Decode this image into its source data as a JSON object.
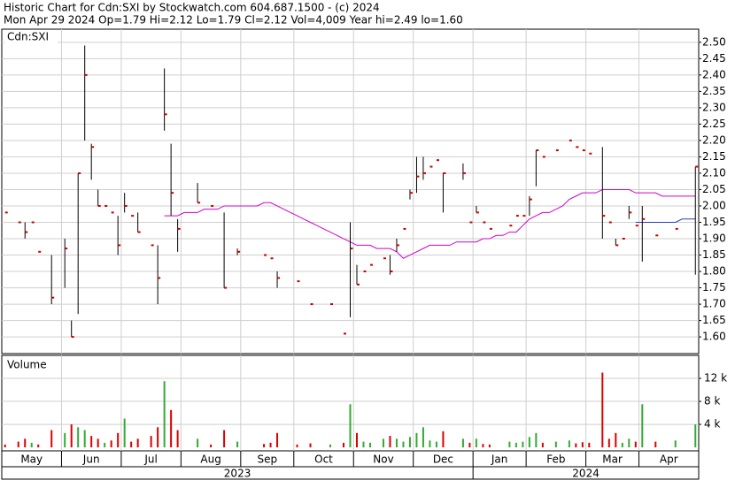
{
  "header": {
    "title": "Historic Chart for Cdn:SXI by Stockwatch.com 604.687.1500 - (c) 2024",
    "subtitle": "Mon Apr 29 2024  Op=1.79  Hi=2.12  Lo=1.79  Cl=2.12  Vol=4,009  Year hi=2.49  lo=1.60"
  },
  "chart_data": {
    "type": "ohlc",
    "categories": [
      "May",
      null,
      null,
      null,
      null,
      null,
      null,
      null,
      null,
      "Jun",
      null,
      null,
      null,
      null,
      null,
      null,
      null,
      null,
      "Jul",
      null,
      null,
      null,
      null,
      null,
      null,
      null,
      null,
      "Aug",
      null,
      null,
      null,
      null,
      null,
      null,
      null,
      null,
      "Sep",
      null,
      null,
      null,
      null,
      null,
      null,
      null,
      "Oct",
      null,
      null,
      null,
      null,
      null,
      null,
      null,
      null,
      "Nov",
      null,
      null,
      null,
      null,
      null,
      null,
      null,
      null,
      "Dec",
      null,
      null,
      null,
      null,
      null,
      null,
      null,
      null,
      "Jan",
      null,
      null,
      null,
      null,
      null,
      null,
      null,
      "Feb",
      null,
      null,
      null,
      null,
      null,
      null,
      null,
      null,
      "Mar",
      null,
      null,
      null,
      null,
      null,
      null,
      null,
      "Apr",
      null,
      null,
      null,
      null,
      null,
      null,
      null,
      null
    ],
    "year_categories": [
      "2023",
      null,
      null,
      null,
      null,
      null,
      null,
      null,
      null,
      null,
      null,
      null,
      null,
      null,
      null,
      null,
      null,
      null,
      null,
      null,
      null,
      null,
      null,
      null,
      null,
      null,
      null,
      null,
      null,
      null,
      null,
      null,
      null,
      null,
      null,
      null,
      null,
      null,
      null,
      null,
      null,
      null,
      null,
      null,
      null,
      null,
      null,
      null,
      null,
      null,
      null,
      null,
      null,
      null,
      null,
      null,
      null,
      null,
      null,
      null,
      null,
      null,
      null,
      null,
      null,
      null,
      null,
      null,
      null,
      null,
      null,
      "2024",
      null,
      null,
      null,
      null,
      null,
      null,
      null,
      null,
      null,
      null,
      null,
      null,
      null,
      null,
      null,
      null,
      null,
      null,
      null,
      null,
      null,
      null,
      null,
      null,
      null,
      null,
      null,
      null,
      null,
      null,
      null,
      null,
      null
    ],
    "ohlc": {
      "name": "Cdn:SXI",
      "color": "#000000",
      "close_color": "#cc0000",
      "high": [
        1.98,
        null,
        1.95,
        1.95,
        1.95,
        1.86,
        null,
        1.85,
        null,
        1.9,
        1.65,
        2.1,
        2.49,
        2.19,
        2.05,
        2.0,
        1.98,
        1.97,
        2.04,
        1.97,
        1.98,
        null,
        1.88,
        1.88,
        2.42,
        2.19,
        1.96,
        null,
        null,
        2.07,
        null,
        2.0,
        null,
        1.98,
        null,
        1.87,
        null,
        null,
        null,
        1.85,
        1.84,
        1.8,
        null,
        null,
        1.77,
        null,
        1.7,
        null,
        null,
        1.7,
        null,
        1.61,
        1.95,
        1.82,
        1.8,
        1.82,
        null,
        1.84,
        1.85,
        1.9,
        1.93,
        2.05,
        2.15,
        2.15,
        2.12,
        2.14,
        2.1,
        null,
        null,
        2.13,
        1.95,
        2.0,
        1.95,
        1.93,
        null,
        null,
        1.94,
        1.97,
        1.97,
        2.03,
        2.17,
        2.15,
        null,
        2.17,
        null,
        2.2,
        2.18,
        2.17,
        2.16,
        null,
        2.18,
        1.95,
        1.9,
        1.9,
        2.0,
        1.94,
        2.0,
        null,
        1.91,
        null,
        null,
        1.93,
        null,
        null,
        2.12
      ],
      "low": [
        1.98,
        null,
        1.95,
        1.9,
        1.95,
        1.86,
        null,
        1.7,
        null,
        1.75,
        1.6,
        1.67,
        2.2,
        2.08,
        2.0,
        2.0,
        1.98,
        1.85,
        1.98,
        1.97,
        1.92,
        null,
        1.88,
        1.7,
        2.23,
        1.97,
        1.86,
        null,
        null,
        2.01,
        null,
        2.0,
        null,
        1.75,
        null,
        1.85,
        null,
        null,
        null,
        1.85,
        1.84,
        1.75,
        null,
        null,
        1.77,
        null,
        1.7,
        null,
        null,
        1.7,
        null,
        1.61,
        1.66,
        1.76,
        1.8,
        1.82,
        null,
        1.84,
        1.79,
        1.86,
        1.93,
        2.02,
        2.04,
        2.08,
        2.12,
        2.14,
        1.98,
        null,
        null,
        2.08,
        1.95,
        1.98,
        1.95,
        1.93,
        null,
        null,
        1.94,
        1.97,
        1.97,
        1.97,
        2.06,
        2.15,
        null,
        2.17,
        null,
        2.2,
        2.18,
        2.17,
        2.16,
        null,
        1.9,
        1.95,
        1.88,
        1.9,
        1.96,
        1.94,
        1.83,
        null,
        1.91,
        null,
        null,
        1.93,
        null,
        null,
        1.79
      ],
      "close": [
        1.98,
        null,
        1.95,
        1.92,
        1.95,
        1.86,
        null,
        1.72,
        null,
        1.87,
        1.6,
        2.1,
        2.4,
        2.18,
        2.0,
        2.0,
        1.98,
        1.88,
        2.0,
        1.97,
        1.92,
        null,
        1.88,
        1.78,
        2.28,
        2.04,
        1.93,
        null,
        null,
        2.01,
        null,
        2.0,
        null,
        1.75,
        null,
        1.86,
        null,
        null,
        null,
        1.85,
        1.84,
        1.78,
        null,
        null,
        1.77,
        null,
        1.7,
        null,
        null,
        1.7,
        null,
        1.61,
        1.87,
        1.76,
        1.8,
        1.82,
        null,
        1.84,
        1.8,
        1.88,
        1.93,
        2.04,
        2.09,
        2.1,
        2.12,
        2.14,
        2.1,
        null,
        null,
        2.1,
        1.95,
        1.98,
        1.95,
        1.93,
        null,
        null,
        1.94,
        1.97,
        1.97,
        2.02,
        2.17,
        2.15,
        null,
        2.17,
        null,
        2.2,
        2.18,
        2.17,
        2.16,
        null,
        1.97,
        1.95,
        1.88,
        1.9,
        1.98,
        1.94,
        1.96,
        null,
        1.91,
        null,
        null,
        1.93,
        null,
        null,
        2.12
      ]
    },
    "lines": [
      {
        "color": "#d000d0",
        "values": [
          null,
          null,
          null,
          null,
          null,
          null,
          null,
          null,
          null,
          null,
          null,
          null,
          null,
          null,
          null,
          null,
          null,
          null,
          null,
          null,
          null,
          null,
          null,
          null,
          1.97,
          1.97,
          1.97,
          1.98,
          1.98,
          1.98,
          1.99,
          1.99,
          1.99,
          2.0,
          2.0,
          2.0,
          2.0,
          2.0,
          2.0,
          2.01,
          2.01,
          2.0,
          1.99,
          1.98,
          1.97,
          1.96,
          1.95,
          1.94,
          1.93,
          1.92,
          1.91,
          1.9,
          1.89,
          1.88,
          1.88,
          1.88,
          1.87,
          1.87,
          1.87,
          1.86,
          1.84,
          1.85,
          1.86,
          1.87,
          1.88,
          1.88,
          1.88,
          1.88,
          1.89,
          1.89,
          1.89,
          1.89,
          1.9,
          1.9,
          1.91,
          1.91,
          1.92,
          1.92,
          1.94,
          1.96,
          1.97,
          1.98,
          1.98,
          1.99,
          2.0,
          2.02,
          2.03,
          2.04,
          2.04,
          2.04,
          2.05,
          2.05,
          2.05,
          2.05,
          2.05,
          2.04,
          2.04,
          2.04,
          2.04,
          2.03,
          2.03,
          2.03,
          2.03,
          2.03,
          2.03
        ]
      },
      {
        "color": "#2040c0",
        "values": [
          null,
          null,
          null,
          null,
          null,
          null,
          null,
          null,
          null,
          null,
          null,
          null,
          null,
          null,
          null,
          null,
          null,
          null,
          null,
          null,
          null,
          null,
          null,
          null,
          null,
          null,
          null,
          null,
          null,
          null,
          null,
          null,
          null,
          null,
          null,
          null,
          null,
          null,
          null,
          null,
          null,
          null,
          null,
          null,
          null,
          null,
          null,
          null,
          null,
          null,
          null,
          null,
          null,
          null,
          null,
          null,
          null,
          null,
          null,
          null,
          null,
          null,
          null,
          null,
          null,
          null,
          null,
          null,
          null,
          null,
          null,
          null,
          null,
          null,
          null,
          null,
          null,
          null,
          null,
          null,
          null,
          null,
          null,
          null,
          null,
          null,
          null,
          null,
          null,
          null,
          null,
          null,
          null,
          null,
          null,
          1.95,
          1.95,
          1.95,
          1.95,
          1.95,
          1.95,
          1.95,
          1.96,
          1.96,
          1.96
        ]
      }
    ],
    "ylim": [
      1.549,
      2.54
    ],
    "yticks": [
      {
        "value": 1.6,
        "label": "1.60"
      },
      {
        "value": 1.65,
        "label": "1.65"
      },
      {
        "value": 1.7,
        "label": "1.70"
      },
      {
        "value": 1.75,
        "label": "1.75"
      },
      {
        "value": 1.8,
        "label": "1.80"
      },
      {
        "value": 1.85,
        "label": "1.85"
      },
      {
        "value": 1.9,
        "label": "1.90"
      },
      {
        "value": 1.95,
        "label": "1.95"
      },
      {
        "value": 2.0,
        "label": "2.00"
      },
      {
        "value": 2.05,
        "label": "2.05"
      },
      {
        "value": 2.1,
        "label": "2.10"
      },
      {
        "value": 2.15,
        "label": "2.15"
      },
      {
        "value": 2.2,
        "label": "2.20"
      },
      {
        "value": 2.25,
        "label": "2.25"
      },
      {
        "value": 2.3,
        "label": "2.30"
      },
      {
        "value": 2.35,
        "label": "2.35"
      },
      {
        "value": 2.4,
        "label": "2.40"
      },
      {
        "value": 2.45,
        "label": "2.45"
      },
      {
        "value": 2.5,
        "label": "2.50"
      }
    ],
    "grid": true,
    "volume": {
      "label": "Volume",
      "up_color": "#33aa33",
      "down_color": "#dd0000",
      "values": [
        500,
        null,
        1000,
        1500,
        800,
        500,
        null,
        3000,
        null,
        2500,
        4000,
        3500,
        3000,
        2000,
        1500,
        800,
        1200,
        2500,
        5000,
        1000,
        1500,
        null,
        2000,
        3500,
        11500,
        6500,
        3000,
        null,
        null,
        1500,
        null,
        500,
        null,
        3000,
        null,
        1000,
        null,
        null,
        null,
        600,
        800,
        2500,
        null,
        null,
        500,
        null,
        700,
        null,
        null,
        500,
        null,
        800,
        7500,
        2500,
        1000,
        800,
        null,
        1500,
        2000,
        1500,
        1000,
        1800,
        2500,
        3500,
        1200,
        1000,
        2800,
        null,
        null,
        1500,
        800,
        1500,
        600,
        500,
        null,
        null,
        1000,
        800,
        1000,
        1800,
        2500,
        800,
        null,
        1000,
        null,
        1200,
        700,
        900,
        800,
        null,
        13000,
        1500,
        2500,
        800,
        1500,
        1000,
        7500,
        null,
        1000,
        null,
        null,
        1200,
        null,
        null,
        4009
      ],
      "ylim": [
        -600,
        16000
      ],
      "yticks": [
        {
          "value": 4000,
          "label": "4 k"
        },
        {
          "value": 8000,
          "label": "8 k"
        },
        {
          "value": 12000,
          "label": "12 k"
        }
      ]
    }
  }
}
